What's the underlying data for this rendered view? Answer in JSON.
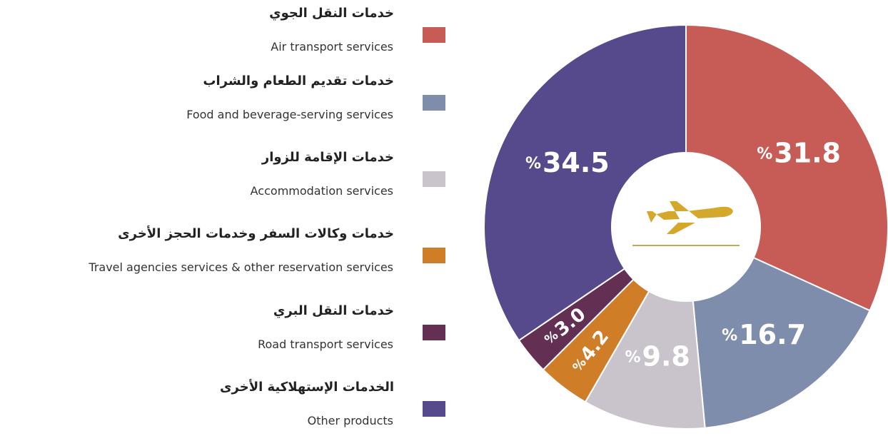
{
  "chart_data": {
    "type": "donut",
    "categories": [
      "Air transport services",
      "Food and beverage-serving services",
      "Accommodation services",
      "Travel agencies services & other reservation services",
      "Road transport services",
      "Other products"
    ],
    "categories_ar": [
      "خدمات النقل الجوي",
      "خدمات تقديم الطعام والشراب",
      "خدمات الإقامة للزوار",
      "خدمات وكالات السفر وخدمات الحجز الأخرى",
      "خدمات النقل البري",
      "الخدمات الإستهلاكية الأخرى"
    ],
    "values": [
      31.8,
      16.7,
      9.8,
      4.2,
      3.0,
      34.5
    ],
    "value_labels": [
      "31.8",
      "16.7",
      "9.8",
      "4.2",
      "3.0",
      "34.5"
    ],
    "value_suffix": "%",
    "colors": [
      "#c65c55",
      "#7f8dac",
      "#c9c4cb",
      "#d07d27",
      "#632f52",
      "#564a8c"
    ]
  }
}
